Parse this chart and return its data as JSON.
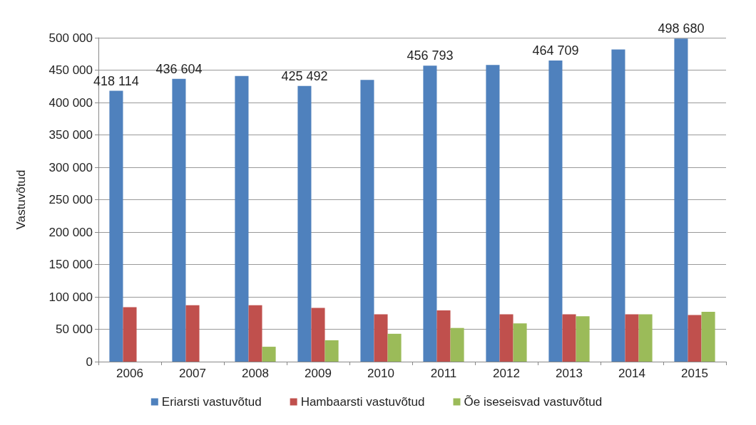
{
  "chart_data": {
    "type": "bar",
    "ylabel": "Vastuvõtud",
    "categories": [
      "2006",
      "2007",
      "2008",
      "2009",
      "2010",
      "2011",
      "2012",
      "2013",
      "2014",
      "2015"
    ],
    "series": [
      {
        "name": "Eriarsti vastuvõtud",
        "color": "#4f81bd",
        "values": [
          418114,
          436604,
          441000,
          425492,
          435000,
          456793,
          458000,
          464709,
          482000,
          498680
        ],
        "value_labels": [
          "418 114",
          "436 604",
          null,
          "425 492",
          null,
          "456 793",
          null,
          "464 709",
          null,
          "498 680"
        ]
      },
      {
        "name": "Hambaarsti vastuvõtud",
        "color": "#c0504d",
        "values": [
          84000,
          87000,
          87000,
          83000,
          73000,
          79000,
          73000,
          73000,
          73000,
          72000
        ]
      },
      {
        "name": "Õe iseseisvad vastuvõtud",
        "color": "#9bbb59",
        "values": [
          null,
          null,
          23000,
          33000,
          43000,
          52000,
          59000,
          70000,
          73000,
          77000
        ]
      }
    ],
    "ylim": [
      0,
      500000
    ],
    "yticks": [
      0,
      {
        "value": 50000,
        "label": "50 000"
      },
      {
        "value": 100000,
        "label": "100 000"
      },
      {
        "value": 150000,
        "label": "150 000"
      },
      {
        "value": 200000,
        "label": "200 000"
      },
      {
        "value": 250000,
        "label": "250 000"
      },
      {
        "value": 300000,
        "label": "300 000"
      },
      {
        "value": 350000,
        "label": "350 000"
      },
      {
        "value": 400000,
        "label": "400 000"
      },
      {
        "value": 450000,
        "label": "450 000"
      },
      {
        "value": 500000,
        "label": "500 000"
      }
    ],
    "grid": "y",
    "legend": "bottom"
  }
}
